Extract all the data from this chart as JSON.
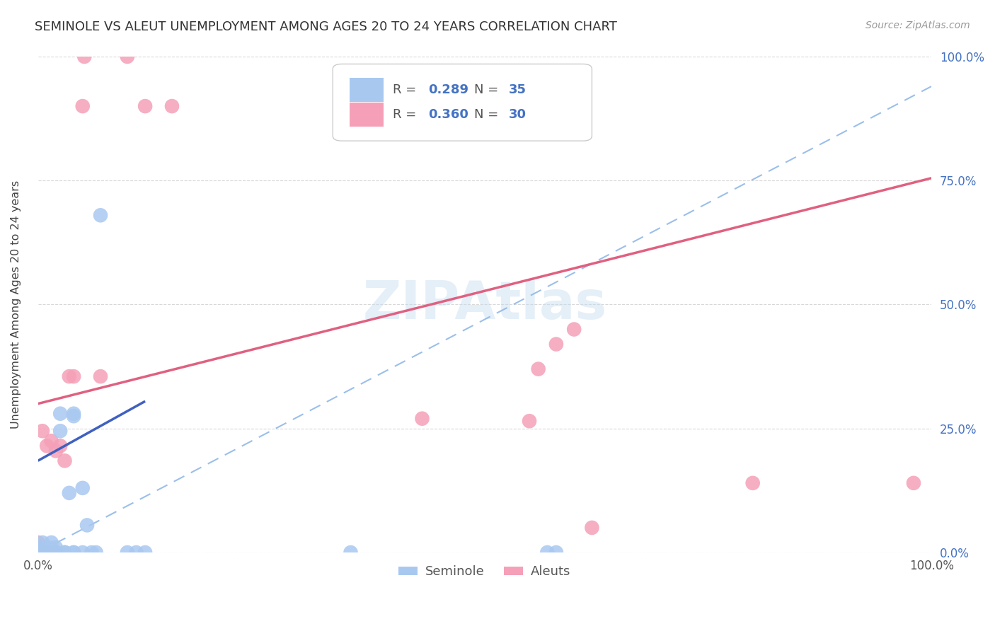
{
  "title": "SEMINOLE VS ALEUT UNEMPLOYMENT AMONG AGES 20 TO 24 YEARS CORRELATION CHART",
  "source": "Source: ZipAtlas.com",
  "ylabel": "Unemployment Among Ages 20 to 24 years",
  "xlim": [
    0,
    1.0
  ],
  "ylim": [
    0,
    1.0
  ],
  "seminole_R": "0.289",
  "seminole_N": "35",
  "aleut_R": "0.360",
  "aleut_N": "30",
  "seminole_color": "#a8c8f0",
  "aleut_color": "#f5a0b8",
  "seminole_line_color": "#4060c0",
  "aleut_line_color": "#e06080",
  "dash_line_color": "#90b8e8",
  "ytick_positions": [
    0.0,
    0.25,
    0.5,
    0.75,
    1.0
  ],
  "ytick_labels": [
    "0.0%",
    "25.0%",
    "50.0%",
    "75.0%",
    "100.0%"
  ],
  "xtick_positions": [
    0.0,
    1.0
  ],
  "xtick_labels": [
    "0.0%",
    "100.0%"
  ],
  "background_color": "#ffffff",
  "grid_color": "#d8d8d8",
  "seminole_scatter_x": [
    0.0,
    0.0,
    0.0,
    0.0,
    0.005,
    0.01,
    0.01,
    0.01,
    0.012,
    0.015,
    0.02,
    0.02,
    0.02,
    0.025,
    0.025,
    0.03,
    0.03,
    0.03,
    0.035,
    0.04,
    0.04,
    0.04,
    0.04,
    0.05,
    0.05,
    0.055,
    0.06,
    0.065,
    0.07,
    0.1,
    0.11,
    0.12,
    0.35,
    0.57,
    0.58
  ],
  "seminole_scatter_y": [
    0.0,
    0.0,
    0.005,
    0.01,
    0.02,
    0.0,
    0.0,
    0.005,
    0.01,
    0.02,
    0.0,
    0.0,
    0.01,
    0.245,
    0.28,
    0.0,
    0.0,
    0.0,
    0.12,
    0.0,
    0.0,
    0.275,
    0.28,
    0.0,
    0.13,
    0.055,
    0.0,
    0.0,
    0.68,
    0.0,
    0.0,
    0.0,
    0.0,
    0.0,
    0.0
  ],
  "aleut_scatter_x": [
    0.0,
    0.0,
    0.0,
    0.0,
    0.005,
    0.01,
    0.01,
    0.01,
    0.015,
    0.02,
    0.02,
    0.02,
    0.025,
    0.03,
    0.035,
    0.04,
    0.05,
    0.052,
    0.07,
    0.1,
    0.12,
    0.15,
    0.43,
    0.55,
    0.56,
    0.58,
    0.6,
    0.62,
    0.8,
    0.98
  ],
  "aleut_scatter_y": [
    0.0,
    0.0,
    0.005,
    0.02,
    0.245,
    0.0,
    0.0,
    0.215,
    0.225,
    0.0,
    0.0,
    0.205,
    0.215,
    0.185,
    0.355,
    0.355,
    0.9,
    1.0,
    0.355,
    1.0,
    0.9,
    0.9,
    0.27,
    0.265,
    0.37,
    0.42,
    0.45,
    0.05,
    0.14,
    0.14
  ],
  "seminole_line_x": [
    0.0,
    0.12
  ],
  "seminole_line_y": [
    0.185,
    0.305
  ],
  "aleut_line_x": [
    0.0,
    1.0
  ],
  "aleut_line_y": [
    0.3,
    0.755
  ],
  "dash_line_x": [
    0.0,
    1.0
  ],
  "dash_line_y": [
    0.0,
    0.94
  ]
}
